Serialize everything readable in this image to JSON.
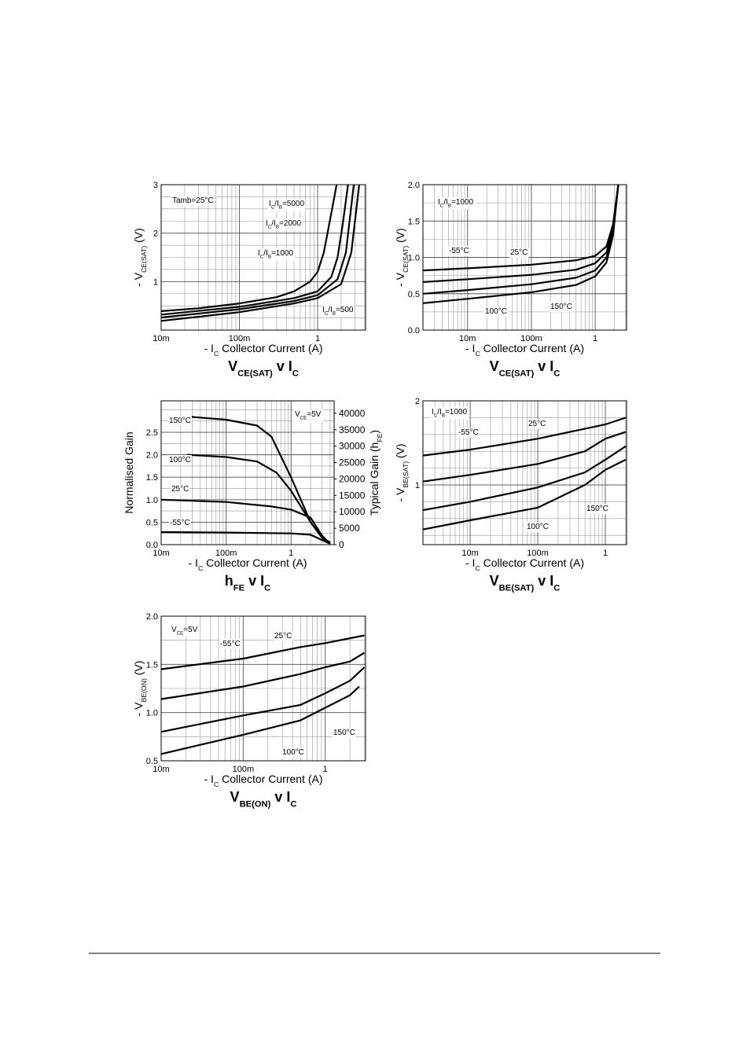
{
  "chart_data": [
    {
      "type": "line",
      "xscale": "log",
      "grid": true,
      "title": [
        {
          "text": "V"
        },
        {
          "text": "CE(SAT)",
          "sub": true
        },
        {
          "text": " v I"
        },
        {
          "text": "C",
          "sub": true
        }
      ],
      "x_label": [
        {
          "text": "- I"
        },
        {
          "text": "C",
          "sub": true
        },
        {
          "text": "   Collector Current (A)"
        }
      ],
      "y_label": [
        {
          "text": "- V"
        },
        {
          "text": "CE(SAT)",
          "sub": true
        },
        {
          "text": "   (V)"
        }
      ],
      "annotation": "Tamb=25°C",
      "xlim": [
        0.01,
        4.1
      ],
      "ylim": [
        0,
        3
      ],
      "xticks": [
        {
          "value": 0.01,
          "label": "10m"
        },
        {
          "value": 0.1,
          "label": "100m"
        },
        1
      ],
      "yticks": [
        1,
        2,
        3
      ],
      "series": [
        {
          "name": [
            {
              "text": "I"
            },
            {
              "text": "C",
              "sub": true
            },
            {
              "text": "/I"
            },
            {
              "text": "B",
              "sub": true
            },
            {
              "text": "=5000"
            }
          ],
          "color": "#000000",
          "x": [
            0.01,
            0.03,
            0.1,
            0.3,
            0.5,
            0.8,
            1,
            1.2,
            1.45,
            1.75
          ],
          "values": [
            0.39,
            0.45,
            0.55,
            0.68,
            0.8,
            1.0,
            1.2,
            1.6,
            2.3,
            3
          ]
        },
        {
          "name": [
            {
              "text": "I"
            },
            {
              "text": "C",
              "sub": true
            },
            {
              "text": "/I"
            },
            {
              "text": "B",
              "sub": true
            },
            {
              "text": "=2000"
            }
          ],
          "color": "#000000",
          "x": [
            0.01,
            0.1,
            0.5,
            1,
            1.5,
            1.8,
            2.1,
            2.45
          ],
          "values": [
            0.32,
            0.48,
            0.66,
            0.8,
            1.1,
            1.5,
            2.2,
            3
          ]
        },
        {
          "name": [
            {
              "text": "I"
            },
            {
              "text": "C",
              "sub": true
            },
            {
              "text": "/I"
            },
            {
              "text": "B",
              "sub": true
            },
            {
              "text": "=1000"
            }
          ],
          "color": "#000000",
          "x": [
            0.01,
            0.1,
            0.5,
            1,
            1.8,
            2.3,
            2.9
          ],
          "values": [
            0.26,
            0.43,
            0.6,
            0.72,
            1.05,
            1.6,
            3
          ]
        },
        {
          "name": [
            {
              "text": "I"
            },
            {
              "text": "C",
              "sub": true
            },
            {
              "text": "/I"
            },
            {
              "text": "B",
              "sub": true
            },
            {
              "text": "=500"
            }
          ],
          "color": "#000000",
          "x": [
            0.01,
            0.1,
            0.5,
            1,
            2,
            2.7,
            3.4
          ],
          "values": [
            0.19,
            0.37,
            0.55,
            0.66,
            0.95,
            1.6,
            3
          ]
        }
      ]
    },
    {
      "type": "line",
      "xscale": "log",
      "grid": true,
      "title": [
        {
          "text": "V"
        },
        {
          "text": "CE(SAT)",
          "sub": true
        },
        {
          "text": " v I"
        },
        {
          "text": "C",
          "sub": true
        }
      ],
      "x_label": [
        {
          "text": "- I"
        },
        {
          "text": "C",
          "sub": true
        },
        {
          "text": "   Collector Current (A)"
        }
      ],
      "y_label": [
        {
          "text": "- V"
        },
        {
          "text": "CE(SAT)",
          "sub": true
        },
        {
          "text": "   (V)"
        }
      ],
      "annotation": [
        {
          "text": "I"
        },
        {
          "text": "C",
          "sub": true
        },
        {
          "text": "/I"
        },
        {
          "text": "B",
          "sub": true
        },
        {
          "text": "=1000"
        }
      ],
      "xlim": [
        0.002,
        3.1
      ],
      "ylim": [
        0,
        2
      ],
      "xticks": [
        {
          "value": 0.01,
          "label": "10m"
        },
        {
          "value": 0.1,
          "label": "100m"
        },
        1
      ],
      "yticks": [
        {
          "value": 0,
          "label": "0.0"
        },
        0.5,
        {
          "value": 1,
          "label": "1.0"
        },
        1.5,
        {
          "value": 2,
          "label": "2.0"
        }
      ],
      "series": [
        {
          "name": "-55°C",
          "color": "#000000",
          "x": [
            0.002,
            0.01,
            0.1,
            0.5,
            1,
            1.5,
            1.9,
            2.3
          ],
          "values": [
            0.82,
            0.85,
            0.9,
            0.96,
            1.02,
            1.15,
            1.45,
            2.0
          ]
        },
        {
          "name": "25°C",
          "color": "#000000",
          "x": [
            0.002,
            0.01,
            0.1,
            0.5,
            1,
            1.5,
            1.9,
            2.3
          ],
          "values": [
            0.66,
            0.7,
            0.76,
            0.83,
            0.92,
            1.07,
            1.4,
            2.0
          ]
        },
        {
          "name": "100°C",
          "color": "#000000",
          "x": [
            0.002,
            0.01,
            0.1,
            0.5,
            1,
            1.5,
            1.9,
            2.3
          ],
          "values": [
            0.5,
            0.55,
            0.63,
            0.72,
            0.82,
            1.0,
            1.35,
            2.0
          ]
        },
        {
          "name": "150°C",
          "color": "#000000",
          "x": [
            0.002,
            0.01,
            0.1,
            0.5,
            1,
            1.5,
            1.9,
            2.3
          ],
          "values": [
            0.37,
            0.43,
            0.52,
            0.62,
            0.74,
            0.93,
            1.3,
            2.0
          ]
        }
      ]
    },
    {
      "type": "line",
      "xscale": "log",
      "grid": true,
      "title": [
        {
          "text": "h"
        },
        {
          "text": "FE",
          "sub": true
        },
        {
          "text": " v I"
        },
        {
          "text": "C",
          "sub": true
        }
      ],
      "x_label": [
        {
          "text": "- I"
        },
        {
          "text": "C",
          "sub": true
        },
        {
          "text": "   Collector Current (A)"
        }
      ],
      "y_label": "Normalised Gain",
      "y2_label": [
        {
          "text": "Typical Gain (h"
        },
        {
          "text": "FE",
          "sub": true
        },
        {
          "text": ")"
        }
      ],
      "annotation": [
        {
          "text": "V"
        },
        {
          "text": "CE",
          "sub": true
        },
        {
          "text": "=5V"
        }
      ],
      "xlim": [
        0.01,
        4.6
      ],
      "ylim": [
        0,
        3.2
      ],
      "y2lim": [
        0,
        43800
      ],
      "xticks": [
        {
          "value": 0.01,
          "label": "10m"
        },
        {
          "value": 0.1,
          "label": "100m"
        },
        1
      ],
      "yticks": [
        {
          "value": 0,
          "label": "0.0"
        },
        0.5,
        {
          "value": 1,
          "label": "1.0"
        },
        1.5,
        {
          "value": 2,
          "label": "2.0"
        },
        2.5
      ],
      "y2ticks": [
        0,
        5000,
        10000,
        15000,
        20000,
        25000,
        30000,
        35000,
        40000
      ],
      "series": [
        {
          "name": "150°C",
          "color": "#000000",
          "x": [
            0.025,
            0.1,
            0.3,
            0.5,
            1,
            2,
            3,
            4
          ],
          "values": [
            2.85,
            2.78,
            2.65,
            2.4,
            1.5,
            0.5,
            0.15,
            0.05
          ]
        },
        {
          "name": "100°C",
          "color": "#000000",
          "x": [
            0.025,
            0.1,
            0.3,
            0.6,
            1,
            2,
            3.5
          ],
          "values": [
            2.0,
            1.95,
            1.85,
            1.6,
            1.2,
            0.5,
            0.05
          ]
        },
        {
          "name": "25°C",
          "color": "#000000",
          "x": [
            0.01,
            0.1,
            0.5,
            1,
            2,
            3,
            4
          ],
          "values": [
            1.0,
            0.95,
            0.85,
            0.78,
            0.6,
            0.2,
            0.02
          ]
        },
        {
          "name": "-55°C",
          "color": "#000000",
          "x": [
            0.01,
            0.1,
            1,
            2,
            3,
            4
          ],
          "values": [
            0.28,
            0.27,
            0.25,
            0.22,
            0.1,
            0.02
          ]
        }
      ]
    },
    {
      "type": "line",
      "xscale": "log",
      "grid": true,
      "title": [
        {
          "text": "V"
        },
        {
          "text": "BE(SAT)",
          "sub": true
        },
        {
          "text": " v I"
        },
        {
          "text": "C",
          "sub": true
        }
      ],
      "x_label": [
        {
          "text": "- I"
        },
        {
          "text": "C",
          "sub": true
        },
        {
          "text": "   Collector Current (A)"
        }
      ],
      "y_label": [
        {
          "text": "- V"
        },
        {
          "text": "BE(SAT)",
          "sub": true
        },
        {
          "text": "   (V)"
        }
      ],
      "annotation": [
        {
          "text": "I"
        },
        {
          "text": "C",
          "sub": true
        },
        {
          "text": "/I"
        },
        {
          "text": "B",
          "sub": true
        },
        {
          "text": "=1000"
        }
      ],
      "xlim": [
        0.002,
        2.06
      ],
      "ylim": [
        0.29,
        2
      ],
      "xticks": [
        {
          "value": 0.01,
          "label": "10m"
        },
        {
          "value": 0.1,
          "label": "100m"
        },
        1
      ],
      "yticks": [
        1,
        2
      ],
      "series": [
        {
          "name": "-55°C",
          "color": "#000000",
          "x": [
            0.002,
            0.01,
            0.1,
            1,
            2
          ],
          "values": [
            1.35,
            1.42,
            1.55,
            1.72,
            1.8
          ]
        },
        {
          "name": "25°C",
          "color": "#000000",
          "x": [
            0.002,
            0.01,
            0.1,
            0.5,
            1,
            2
          ],
          "values": [
            1.04,
            1.12,
            1.25,
            1.4,
            1.55,
            1.63
          ]
        },
        {
          "name": "100°C",
          "color": "#000000",
          "x": [
            0.002,
            0.01,
            0.1,
            0.5,
            1,
            2
          ],
          "values": [
            0.7,
            0.8,
            0.97,
            1.15,
            1.3,
            1.46
          ]
        },
        {
          "name": "150°C",
          "color": "#000000",
          "x": [
            0.002,
            0.01,
            0.1,
            0.5,
            1,
            2
          ],
          "values": [
            0.47,
            0.58,
            0.73,
            1.0,
            1.18,
            1.3
          ]
        }
      ]
    },
    {
      "type": "line",
      "xscale": "log",
      "grid": true,
      "title": [
        {
          "text": "V"
        },
        {
          "text": "BE(ON)",
          "sub": true
        },
        {
          "text": " v I"
        },
        {
          "text": "C",
          "sub": true
        }
      ],
      "x_label": [
        {
          "text": "- I"
        },
        {
          "text": "C",
          "sub": true
        },
        {
          "text": "   Collector Current (A)"
        }
      ],
      "y_label": [
        {
          "text": "- V"
        },
        {
          "text": "BE(ON)",
          "sub": true
        },
        {
          "text": " (V)"
        }
      ],
      "annotation": [
        {
          "text": "V"
        },
        {
          "text": "CE",
          "sub": true
        },
        {
          "text": "=5V"
        }
      ],
      "xlim": [
        0.01,
        3.1
      ],
      "ylim": [
        0.5,
        2
      ],
      "xticks": [
        {
          "value": 0.01,
          "label": "10m"
        },
        {
          "value": 0.1,
          "label": "100m"
        },
        1
      ],
      "yticks": [
        0.5,
        {
          "value": 1,
          "label": "1.0"
        },
        1.5,
        {
          "value": 2,
          "label": "2.0"
        }
      ],
      "series": [
        {
          "name": "-55°C",
          "color": "#000000",
          "x": [
            0.01,
            0.1,
            0.5,
            1,
            3
          ],
          "values": [
            1.45,
            1.56,
            1.68,
            1.72,
            1.8
          ]
        },
        {
          "name": "25°C",
          "color": "#000000",
          "x": [
            0.01,
            0.1,
            0.5,
            1,
            2,
            3
          ],
          "values": [
            1.14,
            1.27,
            1.4,
            1.47,
            1.53,
            1.62
          ]
        },
        {
          "name": "100°C",
          "color": "#000000",
          "x": [
            0.01,
            0.1,
            0.5,
            1,
            2,
            3
          ],
          "values": [
            0.8,
            0.97,
            1.08,
            1.2,
            1.33,
            1.47
          ]
        },
        {
          "name": "150°C",
          "color": "#000000",
          "x": [
            0.01,
            0.1,
            0.5,
            1,
            2,
            2.6
          ],
          "values": [
            0.57,
            0.77,
            0.92,
            1.05,
            1.18,
            1.27
          ]
        }
      ]
    }
  ]
}
